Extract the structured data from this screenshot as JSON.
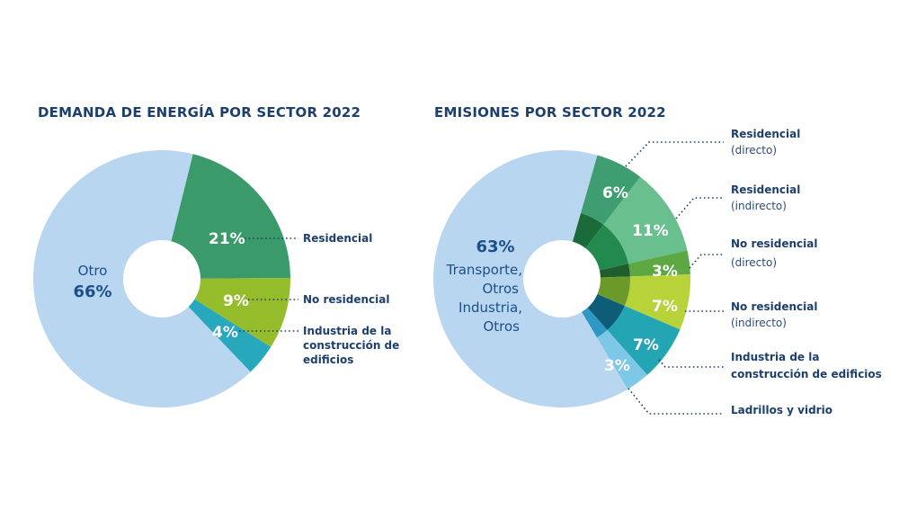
{
  "chart_data": [
    {
      "type": "pie",
      "title": "DEMANDA DE ENERGÍA POR SECTOR 2022",
      "donut": true,
      "start_angle_deg": 14,
      "slices": [
        {
          "label": "Residencial",
          "value": 21,
          "value_label": "21%",
          "color": "#3a9a6a"
        },
        {
          "label": "No residencial",
          "value": 9,
          "value_label": "9%",
          "color": "#95bd2b"
        },
        {
          "label": "Industria de la construcción de edificios",
          "label_lines": [
            "Industria de la",
            "construcción de",
            "edificios"
          ],
          "value": 4,
          "value_label": "4%",
          "color": "#27a8bd"
        },
        {
          "label": "Otro",
          "value": 66,
          "value_label": "66%",
          "color": "#b9d6f0"
        }
      ]
    },
    {
      "type": "pie",
      "title": "EMISIONES POR SECTOR 2022",
      "donut": true,
      "start_angle_deg": 16,
      "slices": [
        {
          "label": "Residencial",
          "sublabel": "(directo)",
          "value": 6,
          "value_label": "6%",
          "color": "#3e9e72",
          "inner_color": "#1b6a3a"
        },
        {
          "label": "Residencial",
          "sublabel": "(indirecto)",
          "value": 11,
          "value_label": "11%",
          "color": "#6abf8f",
          "inner_color": "#228a4d"
        },
        {
          "label": "No residencial",
          "sublabel": "(directo)",
          "value": 3,
          "value_label": "3%",
          "color": "#5ea844",
          "inner_color": "#1f5e2c"
        },
        {
          "label": "No residencial",
          "sublabel": "(indirecto)",
          "value": 7,
          "value_label": "7%",
          "color": "#b8d23a",
          "inner_color": "#6b9a2a"
        },
        {
          "label": "Industria de la construcción de edificios",
          "label_lines": [
            "Industria de la",
            "construcción de edificios"
          ],
          "value": 7,
          "value_label": "7%",
          "color": "#23a5b3",
          "inner_color": "#0d5d78"
        },
        {
          "label": "Ladrillos y vidrio",
          "value": 3,
          "value_label": "3%",
          "color": "#7cc8e6",
          "inner_color": "#2f97c4"
        },
        {
          "label": "Transporte, Otros Industria, Otros",
          "label_lines": [
            "Transporte,",
            "Otros",
            "Industria,",
            "Otros"
          ],
          "value": 63,
          "value_label": "63%",
          "color": "#b9d6f0"
        }
      ]
    }
  ],
  "colors": {
    "title": "#1d3f6e",
    "leader": "#1d3f6e"
  }
}
